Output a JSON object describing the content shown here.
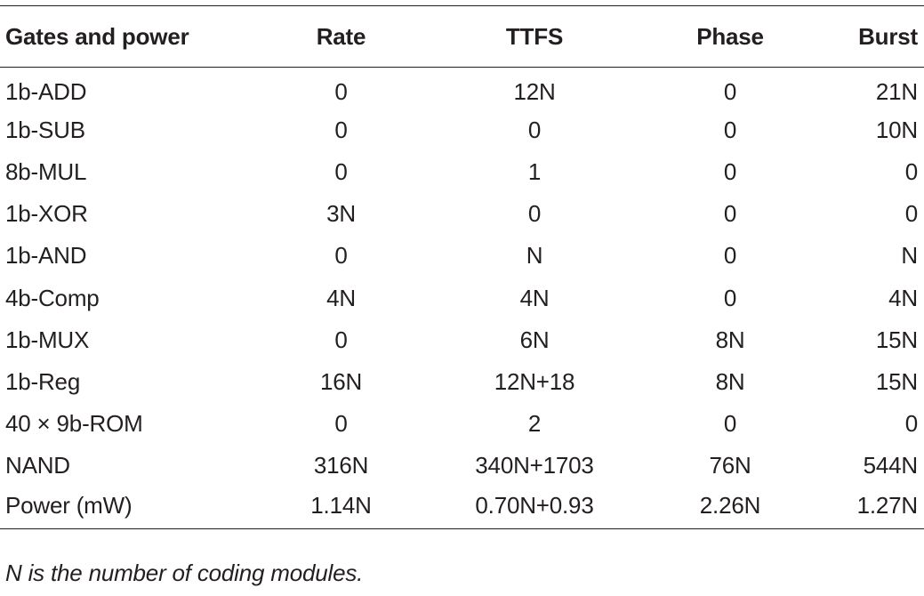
{
  "table": {
    "headers": [
      "Gates and power",
      "Rate",
      "TTFS",
      "Phase",
      "Burst"
    ],
    "rows": [
      [
        "1b-ADD",
        "0",
        "12N",
        "0",
        "21N"
      ],
      [
        "1b-SUB",
        "0",
        "0",
        "0",
        "10N"
      ],
      [
        "8b-MUL",
        "0",
        "1",
        "0",
        "0"
      ],
      [
        "1b-XOR",
        "3N",
        "0",
        "0",
        "0"
      ],
      [
        "1b-AND",
        "0",
        "N",
        "0",
        "N"
      ],
      [
        "4b-Comp",
        "4N",
        "4N",
        "0",
        "4N"
      ],
      [
        "1b-MUX",
        "0",
        "6N",
        "8N",
        "15N"
      ],
      [
        "1b-Reg",
        "16N",
        "12N+18",
        "8N",
        "15N"
      ],
      [
        "40 × 9b-ROM",
        "0",
        "2",
        "0",
        "0"
      ],
      [
        "NAND",
        "316N",
        "340N+1703",
        "76N",
        "544N"
      ],
      [
        "Power (mW)",
        "1.14N",
        "0.70N+0.93",
        "2.26N",
        "1.27N"
      ]
    ]
  },
  "footnote": "N is the number of coding modules."
}
